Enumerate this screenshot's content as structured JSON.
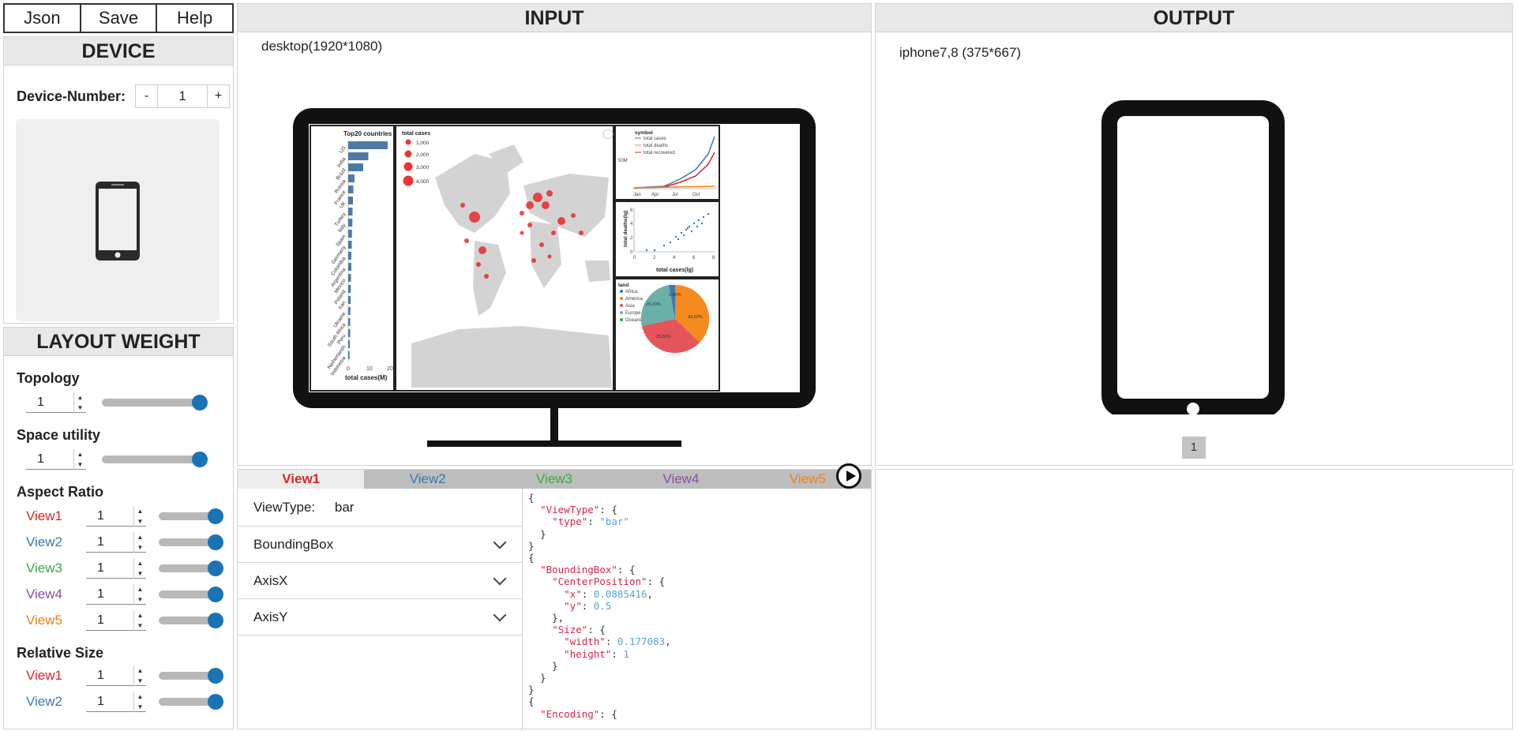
{
  "menu": {
    "json_label": "Json",
    "save_label": "Save",
    "help_label": "Help"
  },
  "device": {
    "title": "DEVICE",
    "number_label": "Device-Number:",
    "minus": "-",
    "plus": "+",
    "number_value": "1"
  },
  "layout_weight": {
    "title": "LAYOUT WEIGHT",
    "topology": {
      "label": "Topology",
      "value": "1",
      "level": 1.0
    },
    "space_utility": {
      "label": "Space utility",
      "value": "1",
      "level": 1.0
    },
    "aspect_ratio": {
      "label": "Aspect Ratio",
      "views": [
        {
          "name": "View1",
          "value": "1",
          "color": "#d62728"
        },
        {
          "name": "View2",
          "value": "1",
          "color": "#3b78b0"
        },
        {
          "name": "View3",
          "value": "1",
          "color": "#39a845"
        },
        {
          "name": "View4",
          "value": "1",
          "color": "#8c4fa0"
        },
        {
          "name": "View5",
          "value": "1",
          "color": "#f07f18"
        }
      ]
    },
    "relative_size": {
      "label": "Relative Size",
      "views": [
        {
          "name": "View1",
          "value": "1",
          "color": "#d62728"
        },
        {
          "name": "View2",
          "value": "1",
          "color": "#3b78b0"
        }
      ]
    }
  },
  "input": {
    "title": "INPUT",
    "resolution": "desktop(1920*1080)",
    "map_legend": {
      "title": "total cases",
      "items": [
        "1,000",
        "2,000",
        "3,000",
        "4,000"
      ]
    },
    "bar_chart": {
      "title": "Top20 countries",
      "countries": [
        "US",
        "India",
        "Brazil",
        "Russia",
        "France",
        "UK",
        "Turkey",
        "Italy",
        "Spain",
        "Germany",
        "Colombia",
        "Argentina",
        "Mexico",
        "Poland",
        "Iran",
        "Ukraine",
        "South Africa",
        "Peru",
        "Netherlands",
        "Indonesia"
      ],
      "values": [
        20,
        10.2,
        7.6,
        3.2,
        2.6,
        2.4,
        2.2,
        2.1,
        1.9,
        1.8,
        1.6,
        1.6,
        1.4,
        1.3,
        1.2,
        1.1,
        1.0,
        1.0,
        0.8,
        0.7
      ],
      "ticks": [
        "0",
        "10",
        "20"
      ],
      "xlabel": "total cases(M)"
    },
    "line_chart": {
      "legend_title": "symbol",
      "legend": [
        "total cases",
        "total deaths",
        "total recovered"
      ],
      "ytick": "50M",
      "xticks": [
        "Jan",
        "Apr",
        "Jul",
        "Oct"
      ]
    },
    "scatter_chart": {
      "ylabel": "total deaths(lg)",
      "xlabel": "total cases(lg)",
      "xticks": [
        "0",
        "2",
        "4",
        "6",
        "8"
      ],
      "yticks": [
        "0",
        "2",
        "4",
        "6"
      ]
    },
    "pie_chart": {
      "legend_title": "land",
      "legend": [
        "Africa",
        "America",
        "Asia",
        "Europe",
        "Oceania"
      ],
      "labels": [
        "42.60%",
        "25.00%",
        "29.20%",
        "0.66%"
      ]
    }
  },
  "output": {
    "title": "OUTPUT",
    "resolution": "iphone7,8 (375*667)",
    "page": "1"
  },
  "tabs": [
    {
      "label": "View1",
      "color": "#d62728"
    },
    {
      "label": "View2",
      "color": "#3b78b0"
    },
    {
      "label": "View3",
      "color": "#39a845"
    },
    {
      "label": "View4",
      "color": "#8c4fa0"
    },
    {
      "label": "View5",
      "color": "#f07f18"
    }
  ],
  "editor": {
    "viewtype_label": "ViewType:",
    "viewtype_value": "bar",
    "sections": [
      "BoundingBox",
      "AxisX",
      "AxisY"
    ]
  },
  "json_code": {
    "viewtype_key": "\"ViewType\"",
    "type_key": "\"type\"",
    "type_val": "\"bar\"",
    "bbox_key": "\"BoundingBox\"",
    "center_key": "\"CenterPosition\"",
    "x_key": "\"x\"",
    "x_val": "0.0885416",
    "y_key": "\"y\"",
    "y_val": "0.5",
    "size_key": "\"Size\"",
    "width_key": "\"width\"",
    "width_val": "0.177083",
    "height_key": "\"height\"",
    "height_val": "1",
    "encoding_key": "\"Encoding\""
  }
}
